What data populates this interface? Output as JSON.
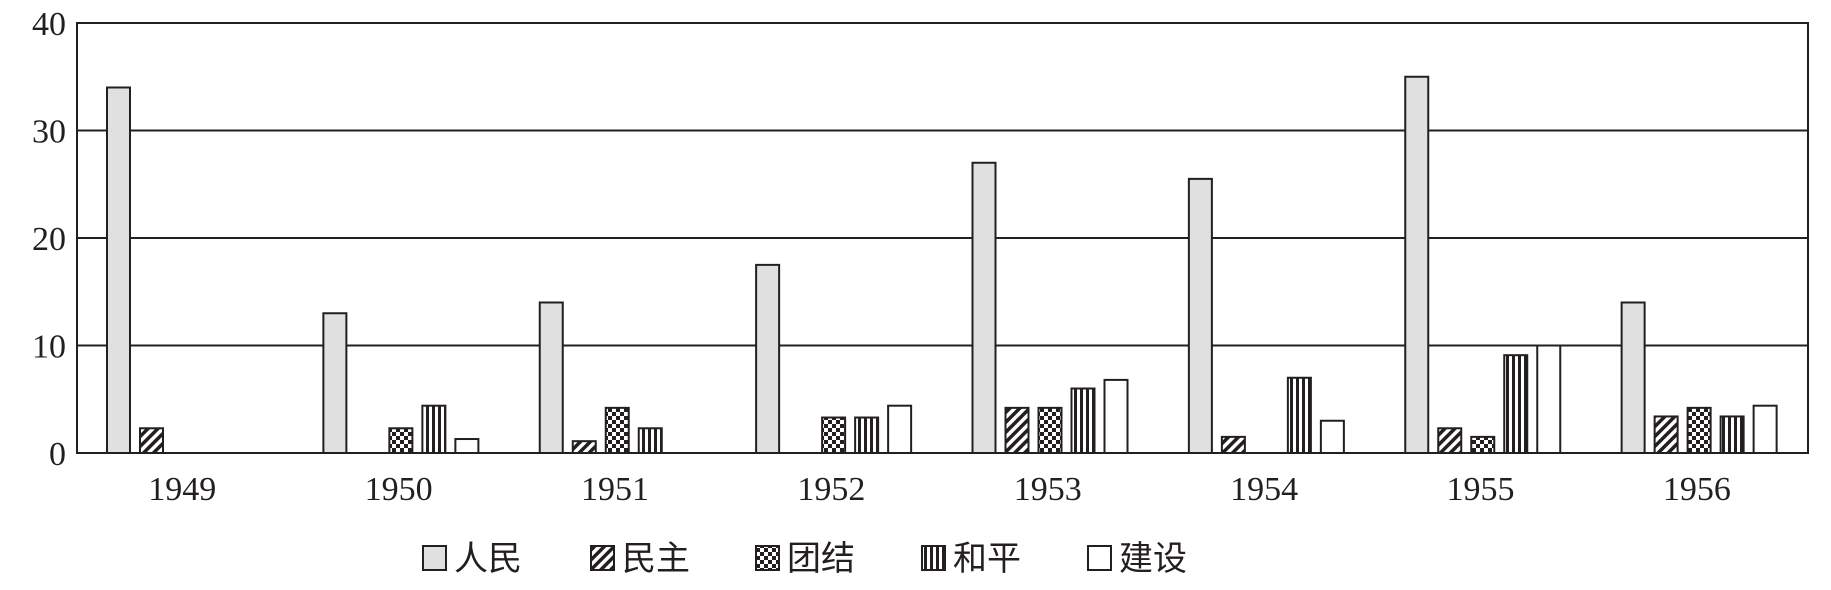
{
  "chart_data": {
    "type": "bar",
    "categories": [
      "1949",
      "1950",
      "1951",
      "1952",
      "1953",
      "1954",
      "1955",
      "1956"
    ],
    "series": [
      {
        "name": "人民",
        "values": [
          34,
          13,
          14,
          17.5,
          27,
          25.5,
          35,
          14
        ],
        "pattern": "gray"
      },
      {
        "name": "民主",
        "values": [
          2.3,
          0,
          1.1,
          0,
          4.2,
          1.5,
          2.3,
          3.4
        ],
        "pattern": "hatch"
      },
      {
        "name": "团结",
        "values": [
          0,
          2.3,
          4.2,
          3.3,
          4.2,
          0,
          1.5,
          4.2
        ],
        "pattern": "checker"
      },
      {
        "name": "和平",
        "values": [
          0,
          4.4,
          2.3,
          3.3,
          6,
          7,
          9.1,
          3.4
        ],
        "pattern": "vstripe"
      },
      {
        "name": "建设",
        "values": [
          0,
          1.3,
          0,
          4.4,
          6.8,
          3,
          10,
          4.4
        ],
        "pattern": "white"
      }
    ],
    "y_ticks": [
      "0",
      "10",
      "20",
      "30",
      "40"
    ],
    "ylim": [
      0,
      40
    ],
    "grid": true,
    "legend_position": "bottom-center",
    "colors": {
      "gray": "#e0e0e0",
      "stroke": "#231f20",
      "fill_white": "#ffffff"
    }
  }
}
